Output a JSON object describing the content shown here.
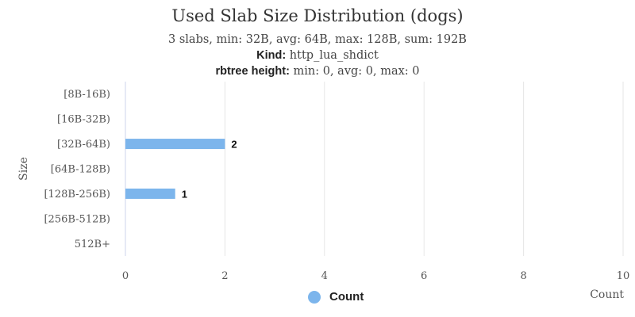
{
  "chart_data": {
    "type": "bar",
    "orientation": "horizontal",
    "title": "Used Slab Size Distribution (dogs)",
    "subtitle": {
      "line1": "3 slabs, min: 32B, avg: 64B, max: 128B, sum: 192B",
      "kind_label": "Kind:",
      "kind_value": "http_lua_shdict",
      "rbtree_label": "rbtree height:",
      "rbtree_value": "min: 0, avg: 0, max: 0"
    },
    "categories": [
      "[8B-16B)",
      "[16B-32B)",
      "[32B-64B)",
      "[64B-128B)",
      "[128B-256B)",
      "[256B-512B)",
      "512B+"
    ],
    "series": [
      {
        "name": "Count",
        "values": [
          0,
          0,
          2,
          0,
          1,
          0,
          0
        ],
        "color": "#7cb5ec"
      }
    ],
    "data_labels": [
      "",
      "",
      "2",
      "",
      "1",
      "",
      ""
    ],
    "xlabel": "Count",
    "ylabel": "Size",
    "xlim": [
      0,
      10
    ],
    "xticks": [
      0,
      2,
      4,
      6,
      8,
      10
    ],
    "grid": true,
    "legend_position": "bottom-center"
  },
  "colors": {
    "bar": "#7cb5ec",
    "grid": "#e6e6e6",
    "axis": "#ccd6eb"
  }
}
